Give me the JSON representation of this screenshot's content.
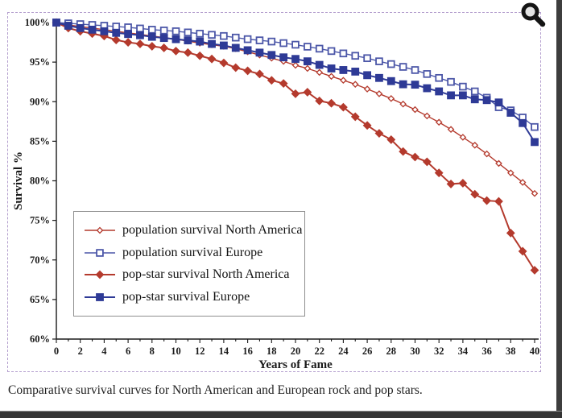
{
  "page": {
    "caption": "Comparative survival curves for North American and European rock and pop stars.",
    "zoom_icon": "magnifier"
  },
  "chart_data": {
    "type": "line",
    "title": "",
    "xlabel": "Years of Fame",
    "ylabel": "Survival %",
    "xlim": [
      0,
      40
    ],
    "ylim": [
      60,
      100
    ],
    "x_tick_label_step": 2,
    "x_tick_minor_step": 1,
    "y_tick_step": 5,
    "y_tick_suffix": "%",
    "grid": false,
    "legend_position": "inside-lower-left",
    "background": "#ffffff",
    "axis_color": "#1a1a1a",
    "x": [
      0,
      1,
      2,
      3,
      4,
      5,
      6,
      7,
      8,
      9,
      10,
      11,
      12,
      13,
      14,
      15,
      16,
      17,
      18,
      19,
      20,
      21,
      22,
      23,
      24,
      25,
      26,
      27,
      28,
      29,
      30,
      31,
      32,
      33,
      34,
      35,
      36,
      37,
      38,
      39,
      40
    ],
    "series": [
      {
        "name": "population survival North America",
        "marker": "open-diamond",
        "color": "#b43a2d",
        "values": [
          100,
          99.7,
          99.5,
          99.3,
          99.1,
          98.9,
          98.7,
          98.5,
          98.3,
          98.1,
          97.9,
          97.65,
          97.4,
          97.2,
          97.0,
          96.7,
          96.3,
          95.9,
          95.5,
          95.1,
          94.6,
          94.2,
          93.7,
          93.2,
          92.7,
          92.2,
          91.6,
          91.0,
          90.4,
          89.7,
          89.0,
          88.2,
          87.4,
          86.5,
          85.5,
          84.5,
          83.4,
          82.2,
          81.0,
          79.8,
          78.4
        ]
      },
      {
        "name": "population survival Europe",
        "marker": "open-square",
        "color": "#4c57a8",
        "values": [
          100,
          99.9,
          99.8,
          99.7,
          99.6,
          99.5,
          99.4,
          99.25,
          99.1,
          99.0,
          98.9,
          98.75,
          98.6,
          98.45,
          98.3,
          98.1,
          97.9,
          97.75,
          97.6,
          97.4,
          97.2,
          96.95,
          96.7,
          96.4,
          96.1,
          95.8,
          95.5,
          95.1,
          94.75,
          94.4,
          94.0,
          93.5,
          93.0,
          92.5,
          91.9,
          91.3,
          90.5,
          89.3,
          88.9,
          88.0,
          86.8
        ]
      },
      {
        "name": "pop-star survival North America",
        "marker": "filled-diamond",
        "color": "#b43a2d",
        "values": [
          100,
          99.3,
          98.9,
          98.6,
          98.3,
          97.8,
          97.5,
          97.3,
          97.0,
          96.8,
          96.4,
          96.2,
          95.8,
          95.4,
          94.9,
          94.3,
          93.9,
          93.5,
          92.7,
          92.3,
          91.0,
          91.2,
          90.1,
          89.8,
          89.3,
          88.1,
          87.0,
          86.0,
          85.2,
          83.7,
          83.0,
          82.4,
          81.0,
          79.6,
          79.7,
          78.3,
          77.5,
          77.4,
          73.4,
          71.1,
          68.7
        ]
      },
      {
        "name": "pop-star survival Europe",
        "marker": "filled-square",
        "color": "#2e3a96",
        "values": [
          100,
          99.6,
          99.3,
          99.1,
          98.9,
          98.7,
          98.55,
          98.4,
          98.2,
          98.05,
          97.9,
          97.75,
          97.6,
          97.3,
          97.1,
          96.8,
          96.5,
          96.2,
          95.9,
          95.6,
          95.4,
          95.1,
          94.65,
          94.2,
          94.0,
          93.8,
          93.35,
          93.0,
          92.6,
          92.2,
          92.15,
          91.7,
          91.3,
          90.8,
          90.8,
          90.3,
          90.2,
          89.9,
          88.6,
          87.3,
          84.9
        ]
      }
    ]
  }
}
